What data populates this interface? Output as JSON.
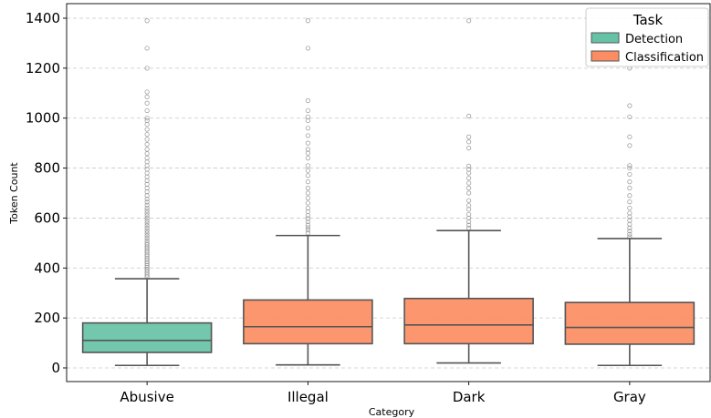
{
  "chart_data": {
    "type": "boxplot",
    "title": "",
    "xlabel": "Category",
    "ylabel": "Token Count",
    "categories": [
      "Abusive",
      "Illegal",
      "Dark",
      "Gray"
    ],
    "ylim": [
      -60,
      1420
    ],
    "yticks": [
      0,
      200,
      400,
      600,
      800,
      1000,
      1200,
      1400
    ],
    "grid": "horizontal-dashed",
    "legend": {
      "title": "Task",
      "placement": "top-right",
      "entries": [
        {
          "name": "Detection",
          "color": "#66c2a5"
        },
        {
          "name": "Classification",
          "color": "#fc8d62"
        }
      ]
    },
    "boxes": [
      {
        "category": "Abusive",
        "task": "Detection",
        "color": "#66c2a5",
        "whislo": 10,
        "q1": 62,
        "med": 110,
        "q3": 180,
        "whishi": 357,
        "fliers": [
          365,
          372,
          380,
          388,
          395,
          403,
          410,
          418,
          425,
          433,
          440,
          448,
          455,
          463,
          470,
          478,
          485,
          493,
          500,
          510,
          520,
          530,
          540,
          550,
          560,
          570,
          580,
          590,
          600,
          610,
          620,
          630,
          640,
          652,
          664,
          676,
          690,
          705,
          720,
          735,
          750,
          765,
          780,
          795,
          810,
          825,
          840,
          858,
          875,
          895,
          915,
          935,
          955,
          975,
          990,
          1000,
          1030,
          1060,
          1085,
          1105,
          1200,
          1280,
          1390
        ]
      },
      {
        "category": "Illegal",
        "task": "Classification",
        "color": "#fc8d62",
        "whislo": 12,
        "q1": 97,
        "med": 165,
        "q3": 272,
        "whishi": 530,
        "fliers": [
          540,
          552,
          562,
          572,
          585,
          598,
          610,
          625,
          640,
          660,
          680,
          700,
          720,
          745,
          770,
          790,
          810,
          840,
          860,
          875,
          900,
          930,
          960,
          990,
          1005,
          1030,
          1070,
          1280,
          1390
        ]
      },
      {
        "category": "Dark",
        "task": "Classification",
        "color": "#fc8d62",
        "whislo": 20,
        "q1": 97,
        "med": 172,
        "q3": 278,
        "whishi": 550,
        "fliers": [
          560,
          572,
          585,
          600,
          615,
          635,
          650,
          670,
          700,
          720,
          740,
          760,
          780,
          795,
          808,
          880,
          905,
          925,
          1008,
          1390
        ]
      },
      {
        "category": "Gray",
        "task": "Classification",
        "color": "#fc8d62",
        "whislo": 10,
        "q1": 95,
        "med": 162,
        "q3": 262,
        "whishi": 518,
        "fliers": [
          525,
          535,
          548,
          560,
          575,
          590,
          605,
          620,
          640,
          665,
          690,
          720,
          745,
          775,
          800,
          810,
          890,
          925,
          1005,
          1050,
          1200
        ]
      }
    ]
  }
}
